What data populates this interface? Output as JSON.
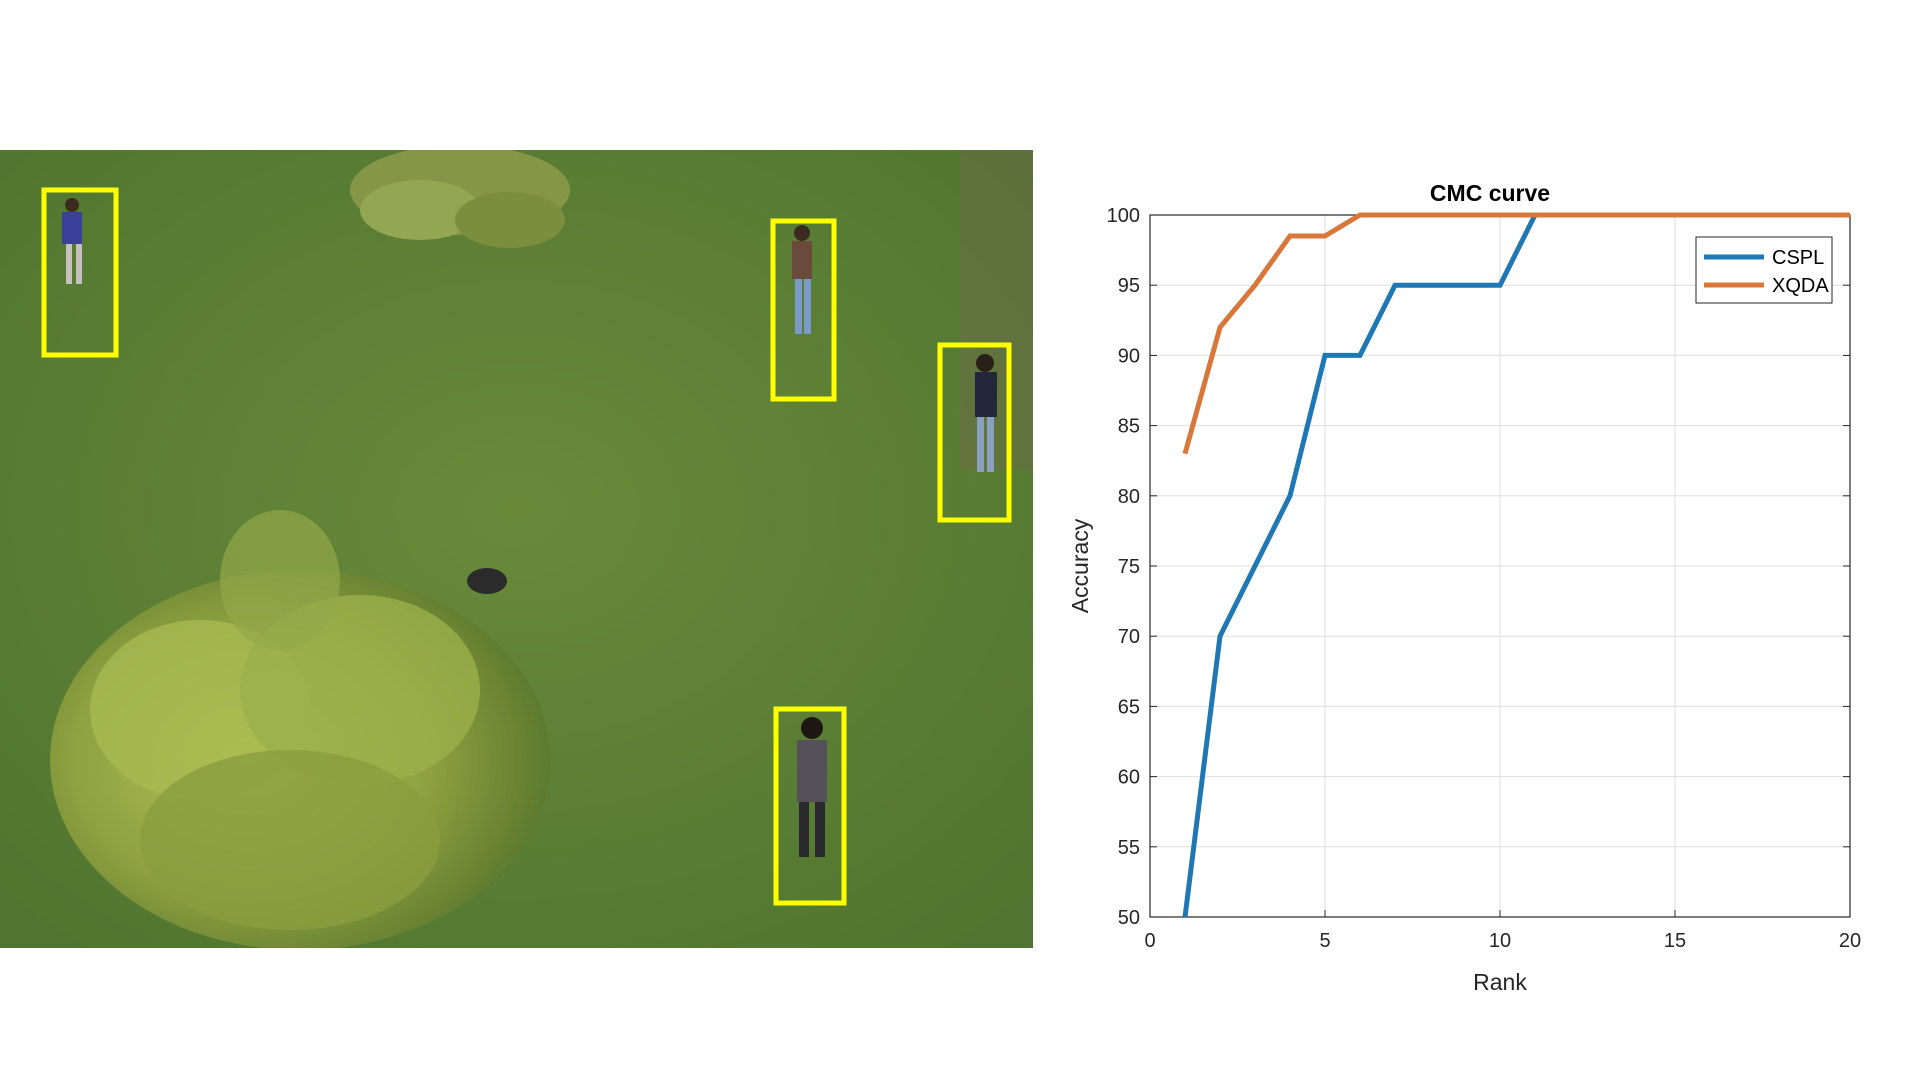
{
  "chart_data": {
    "type": "line",
    "title": "CMC curve",
    "xlabel": "Rank",
    "ylabel": "Accuracy",
    "xlim": [
      0,
      20
    ],
    "ylim": [
      50,
      100
    ],
    "xticks": [
      0,
      5,
      10,
      15,
      20
    ],
    "yticks": [
      50,
      55,
      60,
      65,
      70,
      75,
      80,
      85,
      90,
      95,
      100
    ],
    "grid": true,
    "legend_position": "top-right",
    "series": [
      {
        "name": "CSPL",
        "color": "#1f77b4",
        "x": [
          1,
          2,
          3,
          4,
          5,
          6,
          7,
          8,
          9,
          10,
          11,
          12,
          13,
          14,
          15,
          16,
          17,
          18,
          19,
          20
        ],
        "y": [
          50,
          70,
          75,
          80,
          90,
          90,
          95,
          95,
          95,
          95,
          100,
          100,
          100,
          100,
          100,
          100,
          100,
          100,
          100,
          100
        ]
      },
      {
        "name": "XQDA",
        "color": "#d9773a",
        "x": [
          1,
          2,
          3,
          4,
          5,
          6,
          7,
          8,
          9,
          10,
          11,
          12,
          13,
          14,
          15,
          16,
          17,
          18,
          19,
          20
        ],
        "y": [
          83,
          92,
          95,
          98.5,
          98.5,
          100,
          100,
          100,
          100,
          100,
          100,
          100,
          100,
          100,
          100,
          100,
          100,
          100,
          100,
          100
        ]
      }
    ]
  },
  "scene": {
    "detections": 4,
    "box_color": "#ffff00"
  }
}
